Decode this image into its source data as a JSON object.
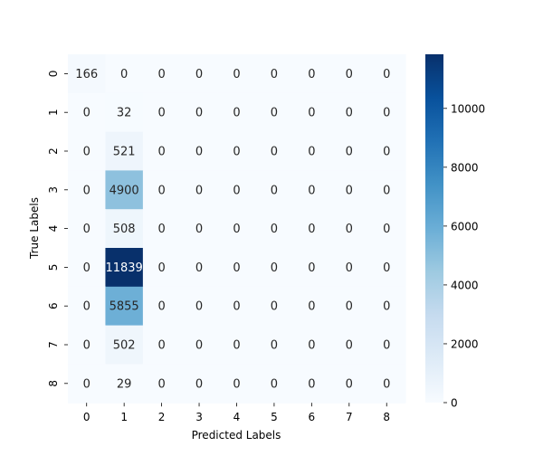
{
  "chart_data": {
    "type": "heatmap",
    "title": "",
    "xlabel": "Predicted Labels",
    "ylabel": "True Labels",
    "x_categories": [
      "0",
      "1",
      "2",
      "3",
      "4",
      "5",
      "6",
      "7",
      "8"
    ],
    "y_categories": [
      "0",
      "1",
      "2",
      "3",
      "4",
      "5",
      "6",
      "7",
      "8"
    ],
    "values": [
      [
        166,
        0,
        0,
        0,
        0,
        0,
        0,
        0,
        0
      ],
      [
        0,
        32,
        0,
        0,
        0,
        0,
        0,
        0,
        0
      ],
      [
        0,
        521,
        0,
        0,
        0,
        0,
        0,
        0,
        0
      ],
      [
        0,
        4900,
        0,
        0,
        0,
        0,
        0,
        0,
        0
      ],
      [
        0,
        508,
        0,
        0,
        0,
        0,
        0,
        0,
        0
      ],
      [
        0,
        11839,
        0,
        0,
        0,
        0,
        0,
        0,
        0
      ],
      [
        0,
        5855,
        0,
        0,
        0,
        0,
        0,
        0,
        0
      ],
      [
        0,
        502,
        0,
        0,
        0,
        0,
        0,
        0,
        0
      ],
      [
        0,
        29,
        0,
        0,
        0,
        0,
        0,
        0,
        0
      ]
    ],
    "colorbar": {
      "min": 0,
      "max": 11839,
      "ticks": [
        0,
        2000,
        4000,
        6000,
        8000,
        10000
      ],
      "colormap": "Blues",
      "low_color": "#f7fbff",
      "high_color": "#08306b"
    },
    "annotations": true,
    "grid": false
  }
}
